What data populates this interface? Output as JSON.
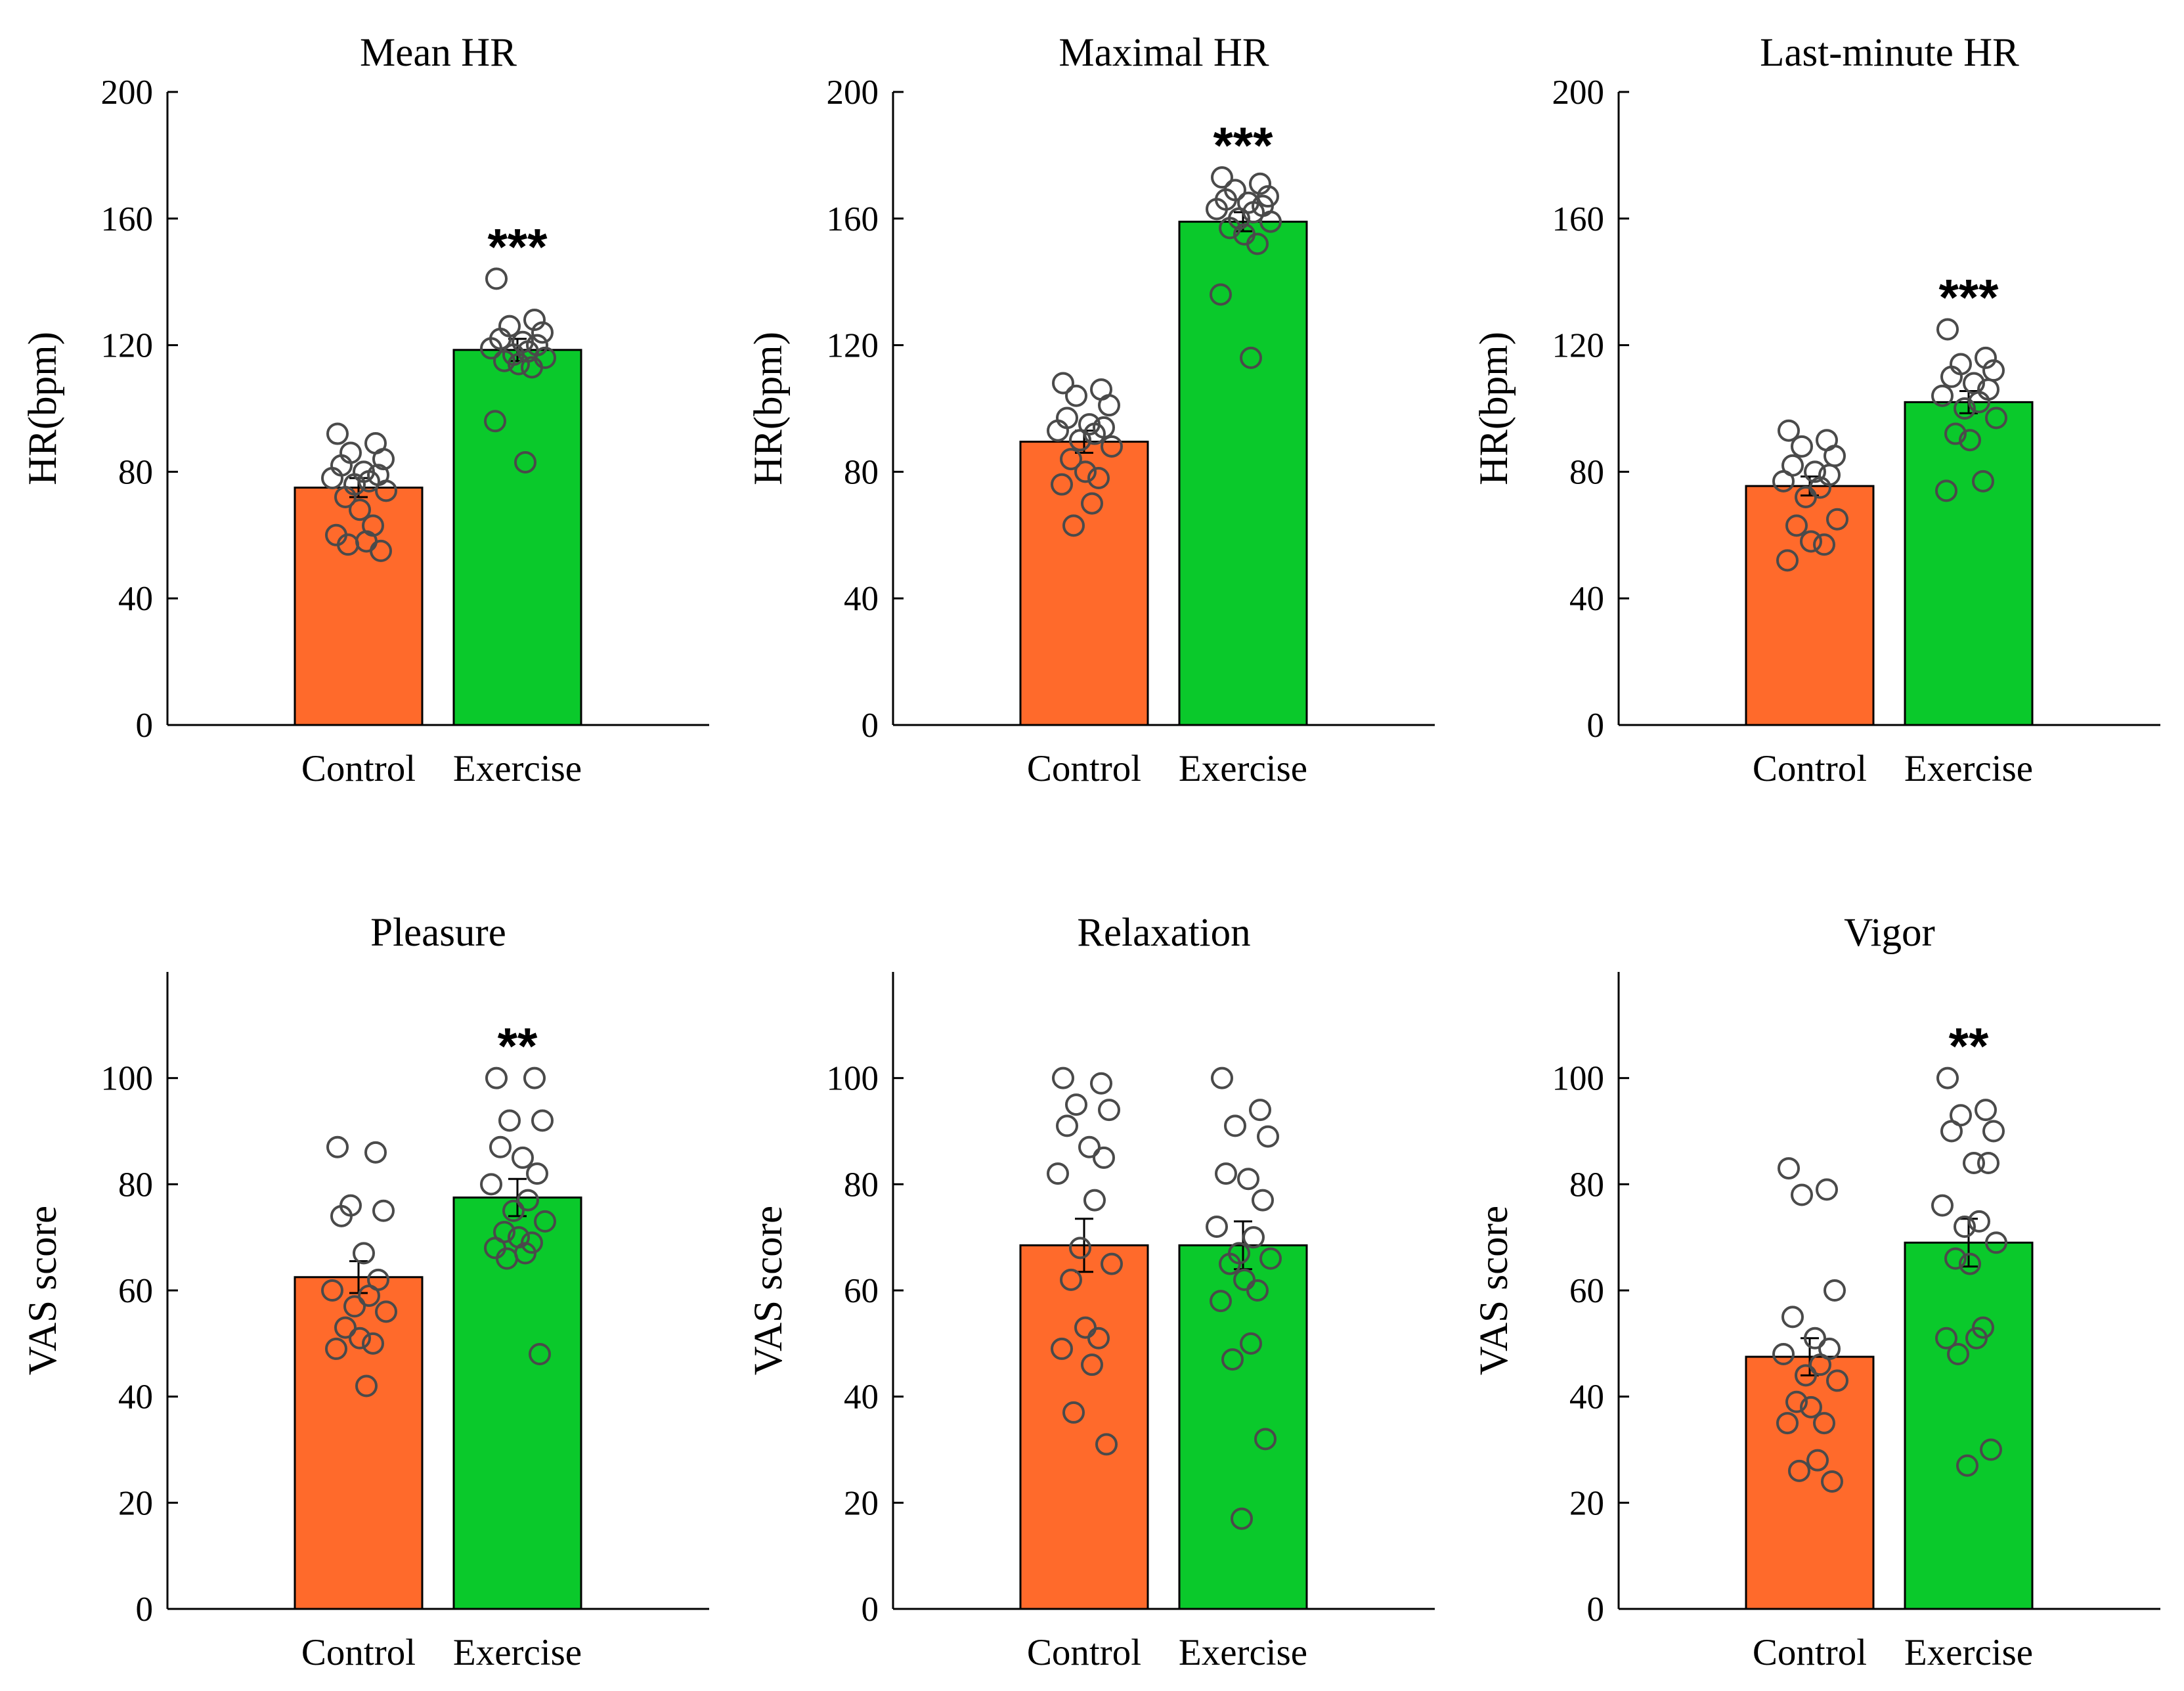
{
  "colors": {
    "control": "#FF6A2B",
    "exercise": "#0AC92B",
    "points": "#4A4A4A"
  },
  "chart_data": [
    {
      "type": "bar",
      "title": "Mean HR",
      "ylabel": "HR(bpm)",
      "categories": [
        "Control",
        "Exercise"
      ],
      "values": [
        75,
        118.5
      ],
      "sem": [
        3,
        3.5
      ],
      "ylim": [
        0,
        200
      ],
      "yticks": [
        "0",
        "40",
        "80",
        "120",
        "160",
        "200"
      ],
      "significance": "***",
      "points": [
        [
          92,
          89,
          86,
          84,
          82,
          80,
          79,
          78,
          77,
          76,
          74,
          72,
          68,
          63,
          60,
          58,
          57,
          55
        ],
        [
          141,
          128,
          126,
          124,
          122,
          121,
          120,
          119,
          118,
          117,
          116,
          115,
          114,
          113,
          96,
          83
        ]
      ],
      "grid": false,
      "legend": "none"
    },
    {
      "type": "bar",
      "title": "Maximal HR",
      "ylabel": "HR(bpm)",
      "categories": [
        "Control",
        "Exercise"
      ],
      "values": [
        89.5,
        159
      ],
      "sem": [
        3.5,
        3
      ],
      "ylim": [
        0,
        200
      ],
      "yticks": [
        "0",
        "40",
        "80",
        "120",
        "160",
        "200"
      ],
      "significance": "***",
      "points": [
        [
          108,
          106,
          104,
          101,
          97,
          95,
          94,
          93,
          92,
          90,
          88,
          84,
          80,
          78,
          76,
          70,
          63
        ],
        [
          173,
          171,
          169,
          167,
          166,
          165,
          164,
          163,
          162,
          160,
          159,
          157,
          155,
          152,
          136,
          116
        ]
      ],
      "grid": false,
      "legend": "none"
    },
    {
      "type": "bar",
      "title": "Last-minute HR",
      "ylabel": "HR(bpm)",
      "categories": [
        "Control",
        "Exercise"
      ],
      "values": [
        75.5,
        102
      ],
      "sem": [
        3,
        3.5
      ],
      "ylim": [
        0,
        200
      ],
      "yticks": [
        "0",
        "40",
        "80",
        "120",
        "160",
        "200"
      ],
      "significance": "***",
      "points": [
        [
          93,
          90,
          88,
          85,
          82,
          80,
          79,
          77,
          75,
          72,
          65,
          63,
          58,
          57,
          52
        ],
        [
          125,
          116,
          114,
          112,
          110,
          108,
          106,
          104,
          102,
          100,
          97,
          92,
          90,
          77,
          74
        ]
      ],
      "grid": false,
      "legend": "none"
    },
    {
      "type": "bar",
      "title": "Pleasure",
      "ylabel": "VAS score",
      "categories": [
        "Control",
        "Exercise"
      ],
      "values": [
        62.5,
        77.5
      ],
      "sem": [
        3,
        3.5
      ],
      "ylim": [
        0,
        120
      ],
      "yticks": [
        "0",
        "20",
        "40",
        "60",
        "80",
        "100"
      ],
      "significance": "**",
      "points": [
        [
          87,
          86,
          76,
          75,
          74,
          67,
          62,
          60,
          59,
          57,
          56,
          53,
          51,
          50,
          49,
          42
        ],
        [
          100,
          100,
          92,
          92,
          87,
          85,
          82,
          80,
          77,
          75,
          73,
          71,
          70,
          69,
          68,
          67,
          66,
          48
        ]
      ],
      "grid": false,
      "legend": "none"
    },
    {
      "type": "bar",
      "title": "Relaxation",
      "ylabel": "VAS score",
      "categories": [
        "Control",
        "Exercise"
      ],
      "values": [
        68.5,
        68.5
      ],
      "sem": [
        5,
        4.5
      ],
      "ylim": [
        0,
        120
      ],
      "yticks": [
        "0",
        "20",
        "40",
        "60",
        "80",
        "100"
      ],
      "significance": "",
      "points": [
        [
          100,
          99,
          95,
          94,
          91,
          87,
          85,
          82,
          77,
          68,
          65,
          62,
          53,
          51,
          49,
          46,
          37,
          31
        ],
        [
          100,
          94,
          91,
          89,
          82,
          81,
          77,
          72,
          70,
          67,
          66,
          65,
          62,
          60,
          58,
          50,
          47,
          32,
          17
        ]
      ],
      "grid": false,
      "legend": "none"
    },
    {
      "type": "bar",
      "title": "Vigor",
      "ylabel": "VAS score",
      "categories": [
        "Control",
        "Exercise"
      ],
      "values": [
        47.5,
        69
      ],
      "sem": [
        3.5,
        4.5
      ],
      "ylim": [
        0,
        120
      ],
      "yticks": [
        "0",
        "20",
        "40",
        "60",
        "80",
        "100"
      ],
      "significance": "**",
      "points": [
        [
          83,
          79,
          78,
          60,
          55,
          51,
          49,
          48,
          46,
          44,
          43,
          39,
          38,
          35,
          35,
          28,
          26,
          24
        ],
        [
          100,
          94,
          93,
          90,
          90,
          84,
          84,
          76,
          73,
          72,
          69,
          66,
          65,
          53,
          51,
          51,
          48,
          30,
          27
        ]
      ],
      "grid": false,
      "legend": "none"
    }
  ]
}
